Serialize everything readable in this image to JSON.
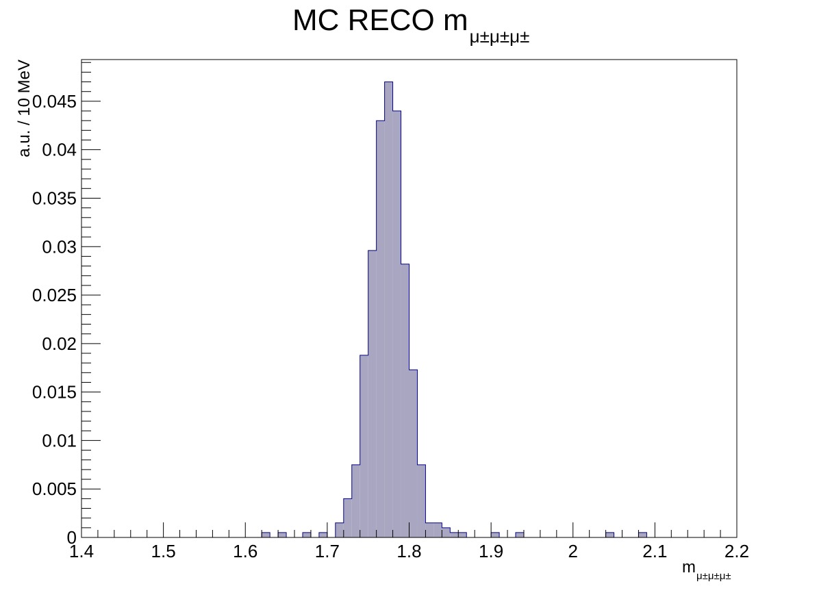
{
  "chart_data": {
    "type": "bar",
    "title": "MC RECO m",
    "title_subscript": "μ±μ±μ±",
    "xlabel": "m",
    "xlabel_subscript": "μ±μ±μ±",
    "ylabel": "a.u. / 10 MeV",
    "xlim": [
      1.4,
      2.2
    ],
    "ylim": [
      0,
      0.0493
    ],
    "bin_width": 0.01,
    "x_ticks": [
      "1.4",
      "1.5",
      "1.6",
      "1.7",
      "1.8",
      "1.9",
      "2",
      "2.1",
      "2.2"
    ],
    "y_ticks": [
      "0",
      "0.005",
      "0.01",
      "0.015",
      "0.02",
      "0.025",
      "0.03",
      "0.035",
      "0.04",
      "0.045"
    ],
    "grid": false,
    "legend": "none",
    "bins": [
      {
        "x": 1.62,
        "value": 0.0005
      },
      {
        "x": 1.64,
        "value": 0.0005
      },
      {
        "x": 1.67,
        "value": 0.0005
      },
      {
        "x": 1.69,
        "value": 0.0005
      },
      {
        "x": 1.71,
        "value": 0.0015
      },
      {
        "x": 1.72,
        "value": 0.004
      },
      {
        "x": 1.73,
        "value": 0.0075
      },
      {
        "x": 1.74,
        "value": 0.0188
      },
      {
        "x": 1.75,
        "value": 0.0296
      },
      {
        "x": 1.76,
        "value": 0.043
      },
      {
        "x": 1.77,
        "value": 0.047
      },
      {
        "x": 1.78,
        "value": 0.044
      },
      {
        "x": 1.79,
        "value": 0.0282
      },
      {
        "x": 1.8,
        "value": 0.0173
      },
      {
        "x": 1.81,
        "value": 0.0075
      },
      {
        "x": 1.82,
        "value": 0.0015
      },
      {
        "x": 1.83,
        "value": 0.0015
      },
      {
        "x": 1.84,
        "value": 0.001
      },
      {
        "x": 1.85,
        "value": 0.0005
      },
      {
        "x": 1.86,
        "value": 0.0005
      },
      {
        "x": 1.9,
        "value": 0.0005
      },
      {
        "x": 1.93,
        "value": 0.0005
      },
      {
        "x": 2.04,
        "value": 0.0005
      },
      {
        "x": 2.08,
        "value": 0.0005
      }
    ],
    "colors": {
      "fill": "#a9a6c2",
      "line": "#00008b",
      "frame": "#000000"
    }
  }
}
